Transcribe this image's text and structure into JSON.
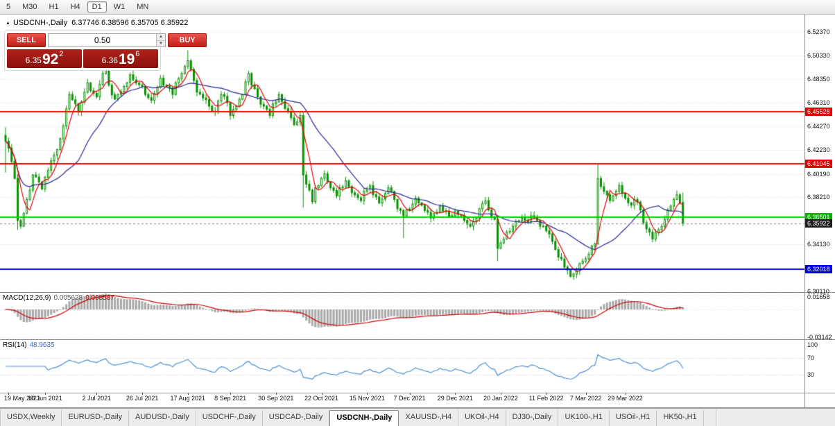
{
  "icons": {
    "collapse": "▲",
    "up": "▲",
    "down": "▼"
  },
  "toolbar": {
    "timeframes": [
      {
        "label": "5",
        "active": false
      },
      {
        "label": "M30",
        "active": false
      },
      {
        "label": "H1",
        "active": false
      },
      {
        "label": "H4",
        "active": false
      },
      {
        "label": "D1",
        "active": true
      },
      {
        "label": "W1",
        "active": false
      },
      {
        "label": "MN",
        "active": false
      }
    ]
  },
  "chart": {
    "symbol": "USDCNH-,Daily",
    "ohlc": "6.37746 6.38596 6.35705 6.35922"
  },
  "trade_panel": {
    "sell_label": "SELL",
    "buy_label": "BUY",
    "volume": "0.50",
    "bid": {
      "prefix": "6.35",
      "big": "92",
      "sup": "2"
    },
    "ask": {
      "prefix": "6.36",
      "big": "19",
      "sup": "6"
    }
  },
  "colors": {
    "candle": "#089000",
    "ma_fast": "#e00000",
    "ma_slow": "#262699",
    "macd_hist": "#a8a8a8",
    "macd_signal": "#cc0000",
    "rsi": "#4a90d2"
  },
  "price_axis": {
    "labels": [
      {
        "text": "6.52370",
        "value": 6.5237
      },
      {
        "text": "6.50330",
        "value": 6.5033
      },
      {
        "text": "6.48350",
        "value": 6.4835
      },
      {
        "text": "6.46310",
        "value": 6.4631
      },
      {
        "text": "6.44270",
        "value": 6.4427
      },
      {
        "text": "6.42230",
        "value": 6.4223
      },
      {
        "text": "6.40190",
        "value": 6.4019
      },
      {
        "text": "6.38210",
        "value": 6.3821
      },
      {
        "text": "6.34130",
        "value": 6.3413
      },
      {
        "text": "6.32090",
        "value": 6.3209
      },
      {
        "text": "6.30110",
        "value": 6.3011
      }
    ],
    "special": [
      {
        "text": "6.45528",
        "value": 6.45528,
        "bg": "#e00000"
      },
      {
        "text": "6.41045",
        "value": 6.41045,
        "bg": "#e00000"
      },
      {
        "text": "6.36501",
        "value": 6.36501,
        "bg": "#00b400"
      },
      {
        "text": "6.35922",
        "value": 6.35922,
        "bg": "#1c1c1c"
      },
      {
        "text": "6.32018",
        "value": 6.32018,
        "bg": "#0000d8"
      }
    ]
  },
  "macd": {
    "label": "MACD(12,26,9)",
    "value": "0.005628",
    "signal_value": "0.008587",
    "axis": [
      {
        "text": "0.01658",
        "value": 0.01658
      },
      {
        "text": "-0.03142",
        "value": -0.03142
      }
    ]
  },
  "rsi": {
    "label": "RSI(14)",
    "value": "48.9635",
    "axis": [
      {
        "text": "100",
        "value": 100
      },
      {
        "text": "70",
        "value": 70
      },
      {
        "text": "30",
        "value": 30
      }
    ],
    "levels": [
      70,
      30
    ]
  },
  "dates": [
    {
      "label": "19 May 2021",
      "i": 1
    },
    {
      "label": "10 Jun 2021",
      "i": 13
    },
    {
      "label": "2 Jul 2021",
      "i": 30
    },
    {
      "label": "26 Jul 2021",
      "i": 45
    },
    {
      "label": "17 Aug 2021",
      "i": 60
    },
    {
      "label": "8 Sep 2021",
      "i": 74
    },
    {
      "label": "30 Sep 2021",
      "i": 89
    },
    {
      "label": "22 Oct 2021",
      "i": 104
    },
    {
      "label": "15 Nov 2021",
      "i": 119
    },
    {
      "label": "7 Dec 2021",
      "i": 133
    },
    {
      "label": "29 Dec 2021",
      "i": 148
    },
    {
      "label": "20 Jan 2022",
      "i": 163
    },
    {
      "label": "11 Feb 2022",
      "i": 178
    },
    {
      "label": "7 Mar 2022",
      "i": 191
    },
    {
      "label": "29 Mar 2022",
      "i": 204
    }
  ],
  "tabs": [
    {
      "label": "USDX,Weekly"
    },
    {
      "label": "EURUSD-,Daily"
    },
    {
      "label": "AUDUSD-,Daily"
    },
    {
      "label": "USDCHF-,Daily"
    },
    {
      "label": "USDCAD-,Daily"
    },
    {
      "label": "USDCNH-,Daily",
      "active": true
    },
    {
      "label": "XAUUSD-,H4"
    },
    {
      "label": "UKOil-,H4"
    },
    {
      "label": "DJ30-,Daily"
    },
    {
      "label": "UK100-,H1"
    },
    {
      "label": "USOil-,H1"
    },
    {
      "label": "HK50-,H1"
    },
    {
      "label": "",
      "partial": true
    }
  ],
  "chart_data": {
    "type": "candlestick",
    "symbol": "USDCNH",
    "timeframe": "Daily",
    "count": 224,
    "price_range": {
      "top": 6.5237,
      "bottom": 6.3011
    },
    "bid": 6.35922,
    "current_candle": {
      "open": 6.37746,
      "high": 6.38596,
      "low": 6.35705,
      "close": 6.35922
    },
    "hlines": [
      {
        "value": 6.45528,
        "color": "#ff0000"
      },
      {
        "value": 6.41045,
        "color": "#ff0000"
      },
      {
        "value": 6.36501,
        "color": "#00d000"
      },
      {
        "value": 6.32018,
        "color": "#0000e0"
      }
    ],
    "indicators": [
      {
        "name": "MACD",
        "params": [
          12,
          26,
          9
        ],
        "values": [
          0.005628,
          0.008587
        ]
      },
      {
        "name": "RSI",
        "params": [
          14
        ],
        "value": 48.9635
      }
    ],
    "anchors": [
      [
        0,
        6.43
      ],
      [
        1,
        6.424
      ],
      [
        3,
        6.398
      ],
      [
        4,
        6.362
      ],
      [
        5,
        6.357
      ],
      [
        6,
        6.368
      ],
      [
        8,
        6.388
      ],
      [
        9,
        6.401
      ],
      [
        11,
        6.395
      ],
      [
        12,
        6.389
      ],
      [
        14,
        6.405
      ],
      [
        16,
        6.418
      ],
      [
        18,
        6.432
      ],
      [
        19,
        6.443
      ],
      [
        21,
        6.47
      ],
      [
        23,
        6.462
      ],
      [
        24,
        6.455
      ],
      [
        26,
        6.472
      ],
      [
        27,
        6.48
      ],
      [
        29,
        6.471
      ],
      [
        30,
        6.468
      ],
      [
        32,
        6.488
      ],
      [
        33,
        6.494
      ],
      [
        34,
        6.478
      ],
      [
        36,
        6.466
      ],
      [
        37,
        6.47
      ],
      [
        39,
        6.477
      ],
      [
        41,
        6.487
      ],
      [
        43,
        6.48
      ],
      [
        45,
        6.477
      ],
      [
        46,
        6.47
      ],
      [
        48,
        6.465
      ],
      [
        50,
        6.476
      ],
      [
        51,
        6.484
      ],
      [
        53,
        6.477
      ],
      [
        55,
        6.47
      ],
      [
        56,
        6.48
      ],
      [
        58,
        6.488
      ],
      [
        59,
        6.494
      ],
      [
        60,
        6.499
      ],
      [
        62,
        6.482
      ],
      [
        63,
        6.472
      ],
      [
        65,
        6.467
      ],
      [
        67,
        6.46
      ],
      [
        69,
        6.455
      ],
      [
        71,
        6.47
      ],
      [
        73,
        6.463
      ],
      [
        74,
        6.452
      ],
      [
        76,
        6.46
      ],
      [
        78,
        6.47
      ],
      [
        80,
        6.488
      ],
      [
        81,
        6.478
      ],
      [
        83,
        6.468
      ],
      [
        85,
        6.46
      ],
      [
        87,
        6.452
      ],
      [
        88,
        6.462
      ],
      [
        90,
        6.47
      ],
      [
        92,
        6.458
      ],
      [
        94,
        6.45
      ],
      [
        95,
        6.444
      ],
      [
        97,
        6.452
      ],
      [
        98,
        6.401
      ],
      [
        100,
        6.388
      ],
      [
        101,
        6.378
      ],
      [
        102,
        6.39
      ],
      [
        104,
        6.398
      ],
      [
        105,
        6.402
      ],
      [
        107,
        6.39
      ],
      [
        109,
        6.383
      ],
      [
        110,
        6.39
      ],
      [
        112,
        6.396
      ],
      [
        113,
        6.391
      ],
      [
        115,
        6.384
      ],
      [
        117,
        6.379
      ],
      [
        118,
        6.387
      ],
      [
        120,
        6.392
      ],
      [
        121,
        6.384
      ],
      [
        123,
        6.377
      ],
      [
        125,
        6.385
      ],
      [
        126,
        6.39
      ],
      [
        128,
        6.38
      ],
      [
        129,
        6.372
      ],
      [
        131,
        6.366
      ],
      [
        132,
        6.371
      ],
      [
        134,
        6.376
      ],
      [
        135,
        6.381
      ],
      [
        137,
        6.375
      ],
      [
        139,
        6.369
      ],
      [
        140,
        6.364
      ],
      [
        142,
        6.369
      ],
      [
        143,
        6.374
      ],
      [
        145,
        6.37
      ],
      [
        147,
        6.366
      ],
      [
        148,
        6.37
      ],
      [
        150,
        6.366
      ],
      [
        151,
        6.362
      ],
      [
        153,
        6.357
      ],
      [
        155,
        6.364
      ],
      [
        156,
        6.372
      ],
      [
        158,
        6.379
      ],
      [
        159,
        6.371
      ],
      [
        161,
        6.363
      ],
      [
        162,
        6.338
      ],
      [
        164,
        6.346
      ],
      [
        165,
        6.352
      ],
      [
        167,
        6.357
      ],
      [
        168,
        6.361
      ],
      [
        170,
        6.364
      ],
      [
        172,
        6.361
      ],
      [
        173,
        6.366
      ],
      [
        175,
        6.362
      ],
      [
        176,
        6.357
      ],
      [
        178,
        6.353
      ],
      [
        180,
        6.344
      ],
      [
        181,
        6.337
      ],
      [
        183,
        6.329
      ],
      [
        184,
        6.322
      ],
      [
        186,
        6.314
      ],
      [
        188,
        6.319
      ],
      [
        189,
        6.325
      ],
      [
        191,
        6.329
      ],
      [
        192,
        6.333
      ],
      [
        193,
        6.34
      ],
      [
        194,
        6.342
      ],
      [
        195,
        6.398
      ],
      [
        196,
        6.391
      ],
      [
        198,
        6.384
      ],
      [
        199,
        6.379
      ],
      [
        201,
        6.387
      ],
      [
        202,
        6.392
      ],
      [
        204,
        6.381
      ],
      [
        206,
        6.375
      ],
      [
        207,
        6.38
      ],
      [
        209,
        6.371
      ],
      [
        210,
        6.36
      ],
      [
        212,
        6.352
      ],
      [
        213,
        6.346
      ],
      [
        215,
        6.354
      ],
      [
        217,
        6.363
      ],
      [
        218,
        6.371
      ],
      [
        220,
        6.38
      ],
      [
        221,
        6.384
      ],
      [
        222,
        6.3775
      ],
      [
        223,
        6.35922
      ]
    ],
    "wick_overrides": {
      "0": {
        "h": 6.442,
        "l": 6.403
      },
      "4": {
        "l": 6.354
      },
      "60": {
        "h": 6.508
      },
      "98": {
        "l": 6.373
      },
      "131": {
        "l": 6.347
      },
      "162": {
        "l": 6.327
      },
      "195": {
        "h": 6.4105
      },
      "223": {
        "o": 6.37746,
        "h": 6.38596,
        "l": 6.35705,
        "c": 6.35922
      }
    }
  }
}
